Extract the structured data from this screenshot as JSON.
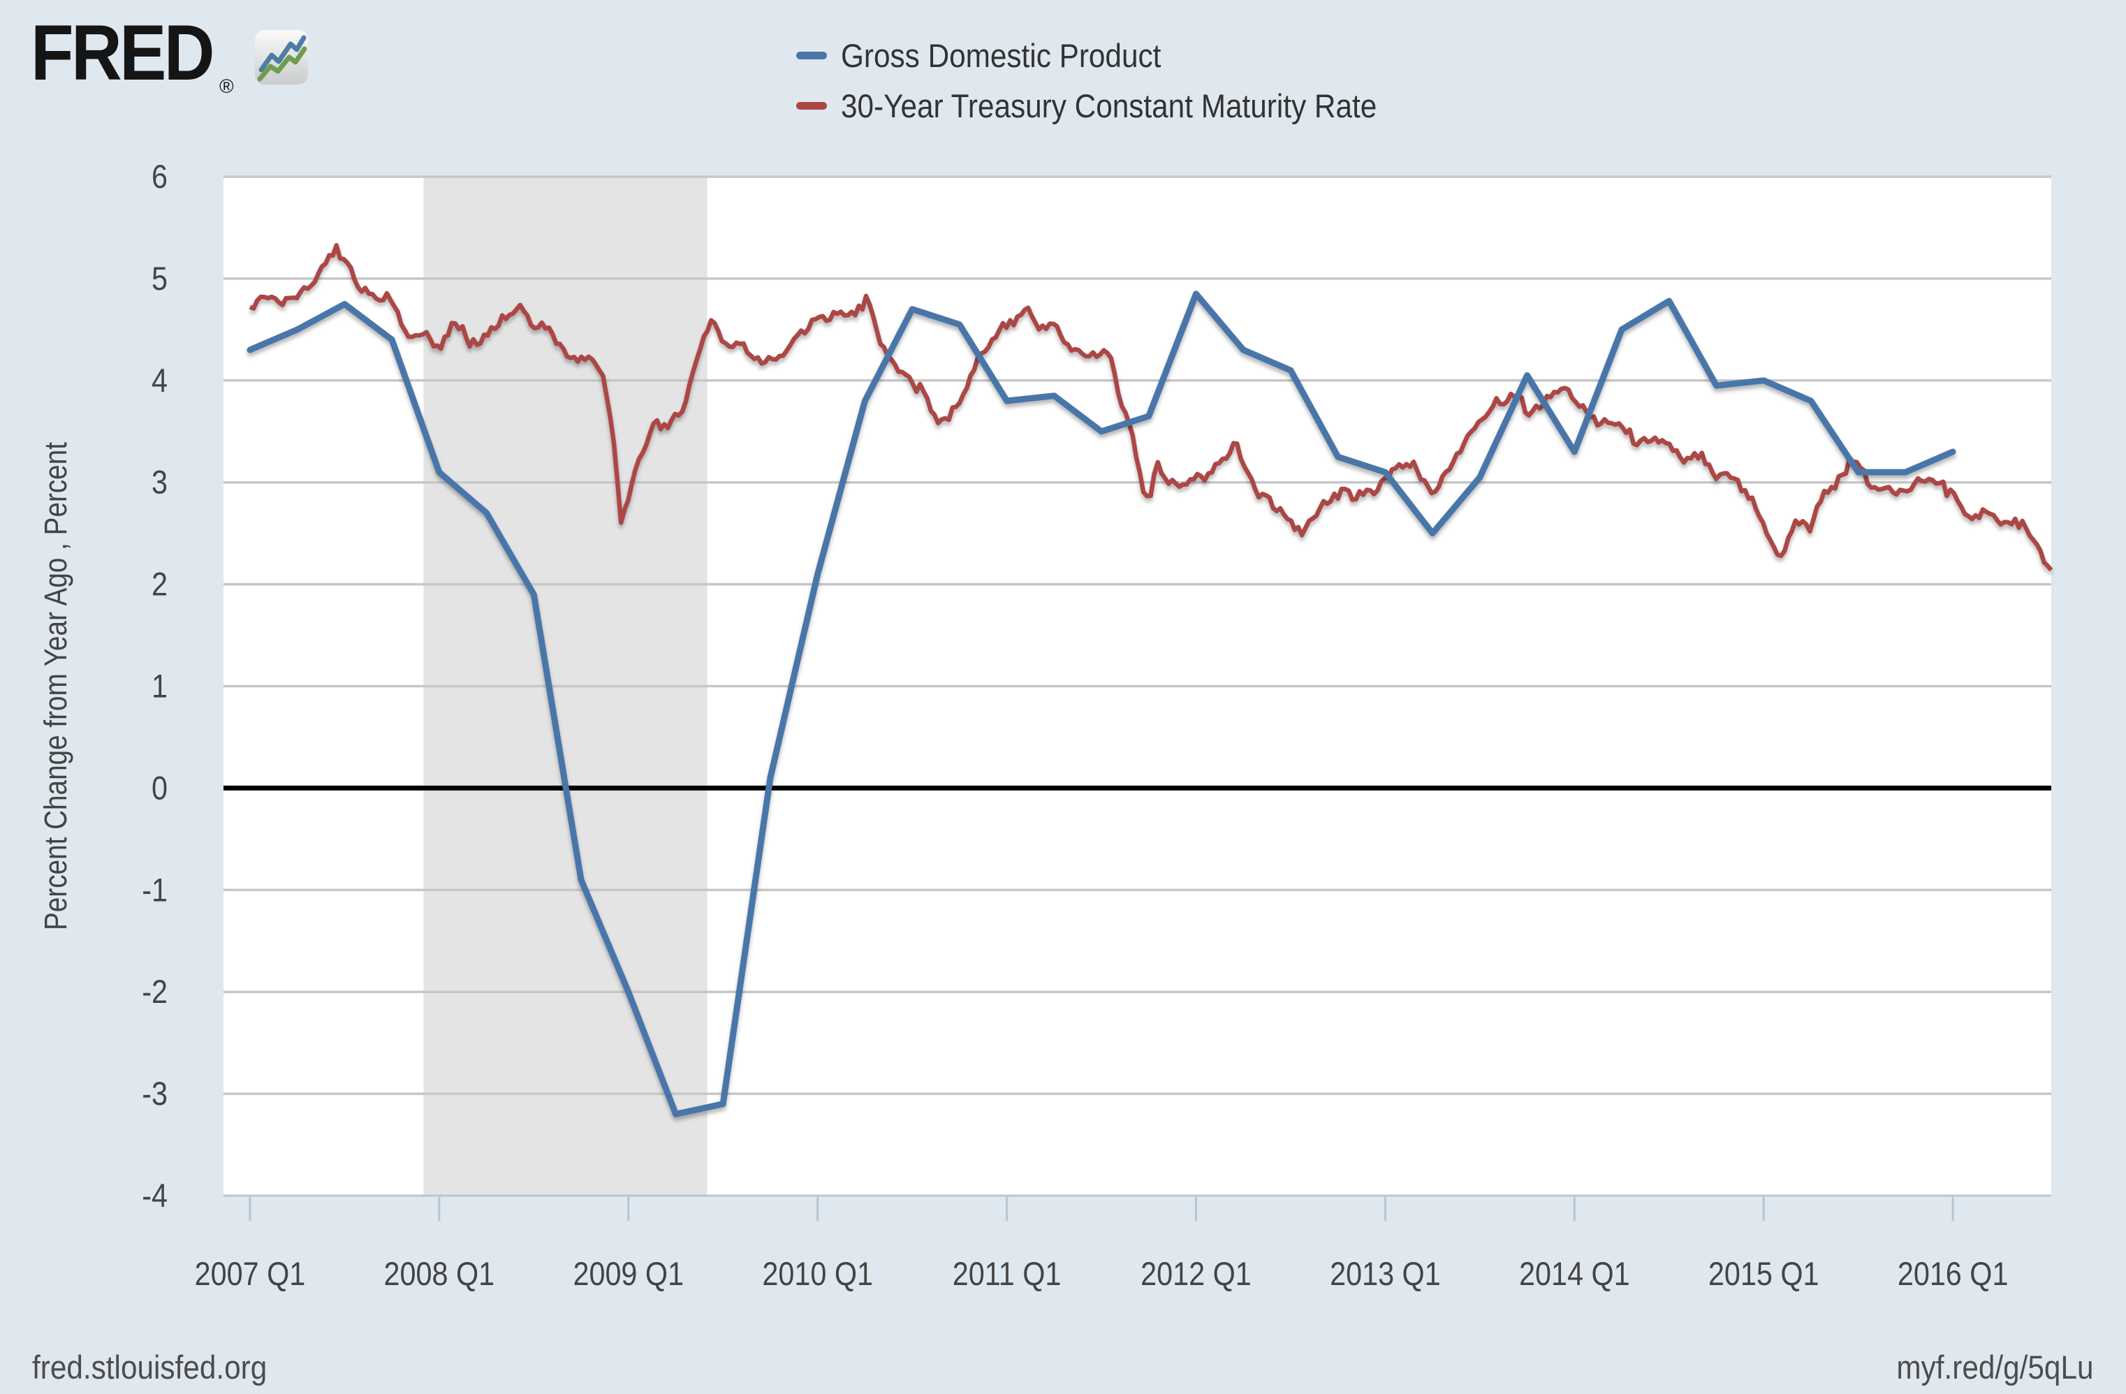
{
  "header": {
    "logo_text": "FRED",
    "registered_mark": "®",
    "icon": "line-chart-icon"
  },
  "legend": [
    {
      "label": "Gross Domestic Product",
      "color": "#4a76a9"
    },
    {
      "label": "30-Year Treasury Constant Maturity Rate",
      "color": "#ab4744"
    }
  ],
  "y_axis": {
    "title": "Percent Change from Year Ago , Percent",
    "tick_labels": [
      "6",
      "5",
      "4",
      "3",
      "2",
      "1",
      "0",
      "-1",
      "-2",
      "-3",
      "-4"
    ]
  },
  "x_axis": {
    "tick_labels": [
      "2007 Q1",
      "2008 Q1",
      "2009 Q1",
      "2010 Q1",
      "2011 Q1",
      "2012 Q1",
      "2013 Q1",
      "2014 Q1",
      "2015 Q1",
      "2016 Q1"
    ]
  },
  "footer": {
    "left": "fred.stlouisfed.org",
    "right": "myf.red/g/5qLu"
  },
  "colors": {
    "page_background": "#dfe8ef",
    "plot_background": "#ffffff",
    "recession_band": "#e4e4e4",
    "gridline": "#c7c7c7",
    "zero_line": "#000000",
    "axis_line": "#b4c7d6",
    "tick_text": "#444444"
  },
  "chart_data": {
    "type": "line",
    "title": "",
    "xlabel": "",
    "ylabel": "Percent Change from Year Ago , Percent",
    "ylim": [
      -4,
      6
    ],
    "xlim": [
      2006.86,
      2016.52
    ],
    "grid": true,
    "legend_position": "top",
    "zero_line": true,
    "recession_band": {
      "start": 2007.917,
      "end": 2009.417
    },
    "series": [
      {
        "name": "Gross Domestic Product",
        "color": "#4a76a9",
        "frequency": "quarterly",
        "x": [
          2007.0,
          2007.25,
          2007.5,
          2007.75,
          2008.0,
          2008.25,
          2008.5,
          2008.75,
          2009.0,
          2009.25,
          2009.5,
          2009.75,
          2010.0,
          2010.25,
          2010.5,
          2010.75,
          2011.0,
          2011.25,
          2011.5,
          2011.75,
          2012.0,
          2012.25,
          2012.5,
          2012.75,
          2013.0,
          2013.25,
          2013.5,
          2013.75,
          2014.0,
          2014.25,
          2014.5,
          2014.75,
          2015.0,
          2015.25,
          2015.5,
          2015.75,
          2016.0
        ],
        "values": [
          4.3,
          4.5,
          4.75,
          4.4,
          3.1,
          2.7,
          1.9,
          -0.9,
          -2.0,
          -3.2,
          -3.1,
          0.1,
          2.1,
          3.8,
          4.7,
          4.55,
          3.8,
          3.85,
          3.5,
          3.65,
          4.85,
          4.3,
          4.1,
          3.25,
          3.1,
          2.5,
          3.05,
          4.05,
          3.3,
          4.5,
          4.78,
          3.95,
          4.0,
          3.8,
          3.1,
          3.1,
          3.3
        ]
      },
      {
        "name": "30-Year Treasury Constant Maturity Rate",
        "color": "#ab4744",
        "frequency": "daily",
        "anchors_t": [
          2007.0,
          2007.08,
          2007.17,
          2007.25,
          2007.33,
          2007.45,
          2007.5,
          2007.58,
          2007.67,
          2007.75,
          2007.83,
          2007.92,
          2008.0,
          2008.08,
          2008.17,
          2008.25,
          2008.33,
          2008.42,
          2008.5,
          2008.58,
          2008.67,
          2008.75,
          2008.83,
          2008.875,
          2008.92,
          2008.96,
          2009.0,
          2009.04,
          2009.13,
          2009.21,
          2009.29,
          2009.37,
          2009.44,
          2009.5,
          2009.58,
          2009.67,
          2009.75,
          2009.83,
          2009.92,
          2010.0,
          2010.08,
          2010.17,
          2010.27,
          2010.33,
          2010.42,
          2010.5,
          2010.58,
          2010.65,
          2010.75,
          2010.83,
          2010.92,
          2011.0,
          2011.11,
          2011.17,
          2011.25,
          2011.33,
          2011.42,
          2011.5,
          2011.54,
          2011.58,
          2011.67,
          2011.72,
          2011.75,
          2011.79,
          2011.83,
          2011.92,
          2012.0,
          2012.08,
          2012.17,
          2012.21,
          2012.25,
          2012.33,
          2012.42,
          2012.56,
          2012.63,
          2012.67,
          2012.75,
          2012.83,
          2012.92,
          2013.0,
          2013.08,
          2013.17,
          2013.25,
          2013.33,
          2013.42,
          2013.5,
          2013.58,
          2013.67,
          2013.71,
          2013.75,
          2013.83,
          2013.92,
          2013.96,
          2014.0,
          2014.08,
          2014.17,
          2014.25,
          2014.33,
          2014.42,
          2014.5,
          2014.58,
          2014.67,
          2014.75,
          2014.83,
          2014.92,
          2015.0,
          2015.08,
          2015.17,
          2015.25,
          2015.33,
          2015.42,
          2015.46,
          2015.54,
          2015.58,
          2015.67,
          2015.75,
          2015.83,
          2015.92,
          2016.0,
          2016.08,
          2016.17,
          2016.25,
          2016.33,
          2016.42,
          2016.48,
          2016.52
        ],
        "anchors_v": [
          4.7,
          4.85,
          4.72,
          4.85,
          4.95,
          5.3,
          5.15,
          4.95,
          4.8,
          4.78,
          4.45,
          4.5,
          4.3,
          4.55,
          4.38,
          4.45,
          4.62,
          4.7,
          4.57,
          4.48,
          4.3,
          4.2,
          4.15,
          3.95,
          3.45,
          2.58,
          2.85,
          3.13,
          3.6,
          3.55,
          3.75,
          4.25,
          4.65,
          4.4,
          4.38,
          4.2,
          4.18,
          4.3,
          4.5,
          4.6,
          4.62,
          4.65,
          4.8,
          4.35,
          4.15,
          4.0,
          3.82,
          3.6,
          3.72,
          4.15,
          4.4,
          4.55,
          4.74,
          4.55,
          4.5,
          4.3,
          4.22,
          4.28,
          4.3,
          3.9,
          3.4,
          2.95,
          2.78,
          3.2,
          3.05,
          2.95,
          3.03,
          3.12,
          3.3,
          3.42,
          3.15,
          2.9,
          2.73,
          2.52,
          2.7,
          2.8,
          2.9,
          2.85,
          2.88,
          3.05,
          3.17,
          3.15,
          2.9,
          3.12,
          3.4,
          3.62,
          3.75,
          3.85,
          3.9,
          3.68,
          3.8,
          3.9,
          3.95,
          3.8,
          3.65,
          3.6,
          3.5,
          3.4,
          3.42,
          3.35,
          3.2,
          3.25,
          3.05,
          3.05,
          2.85,
          2.6,
          2.25,
          2.6,
          2.55,
          2.9,
          3.1,
          3.24,
          3.1,
          2.9,
          2.93,
          2.9,
          3.02,
          2.96,
          2.9,
          2.62,
          2.68,
          2.6,
          2.63,
          2.48,
          2.25,
          2.14
        ]
      }
    ]
  }
}
